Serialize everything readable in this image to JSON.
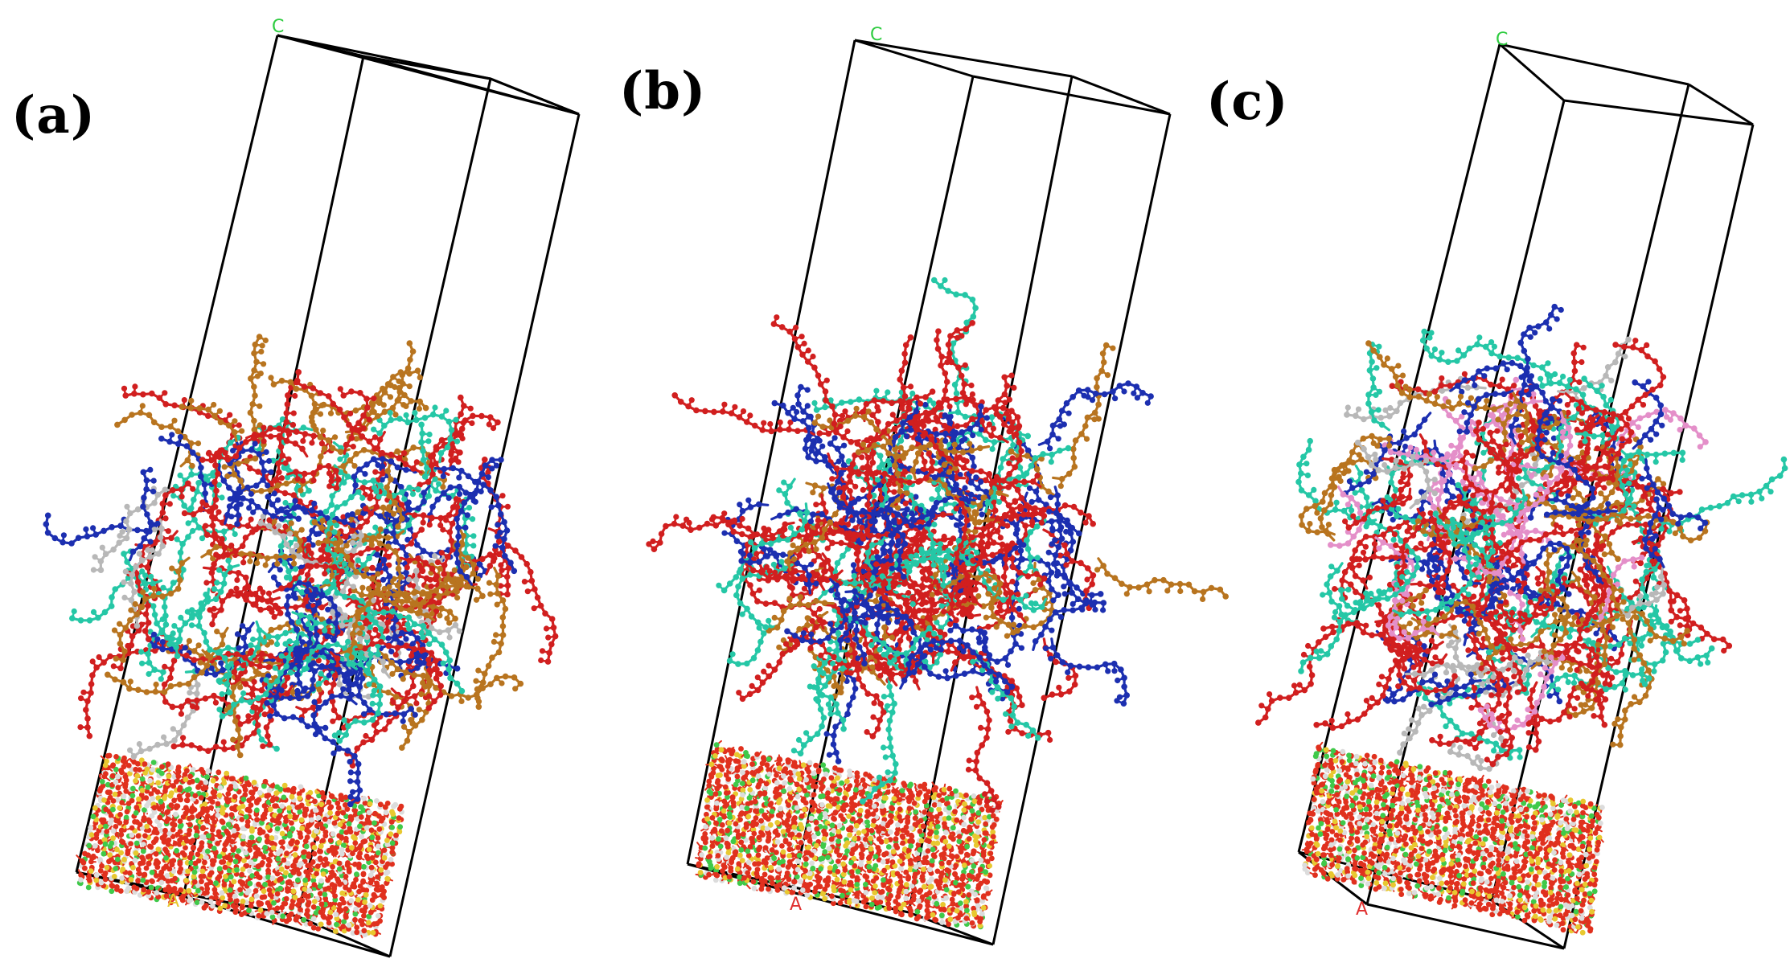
{
  "figure": {
    "panels": [
      {
        "id": "a",
        "label": "(a)",
        "axis_labels": {
          "c": "C",
          "a": "A"
        }
      },
      {
        "id": "b",
        "label": "(b)",
        "axis_labels": {
          "c": "C",
          "a": "A"
        }
      },
      {
        "id": "c",
        "label": "(c)",
        "axis_labels": {
          "c": "C",
          "a": "A"
        }
      }
    ]
  },
  "colors": {
    "cell_edges": "#000000",
    "axis_c_label": "#2ecc40",
    "axis_a_label": "#e03030",
    "molecule_red": "#d11f1f",
    "molecule_blue": "#1c2fb0",
    "molecule_teal": "#25c7a6",
    "molecule_brown": "#b8741f",
    "molecule_gray": "#b8b8b8",
    "molecule_pink": "#e48fc9",
    "substrate_red": "#e0301e",
    "substrate_green": "#3fc94a",
    "substrate_white": "#dcdcdc",
    "substrate_yellow": "#e8c830"
  }
}
